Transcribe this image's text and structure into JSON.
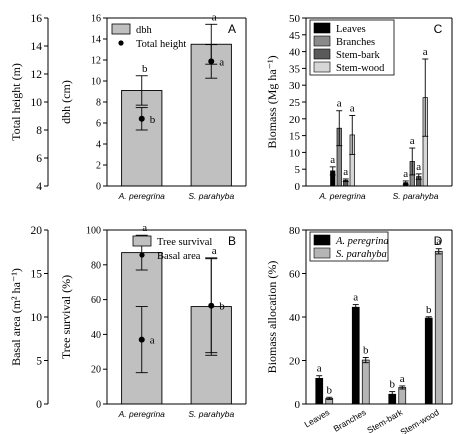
{
  "chart_data": [
    {
      "type": "bar",
      "panel": "A",
      "categories": [
        "A. peregrina",
        "S. parahyba"
      ],
      "legend": [
        "dbh",
        "Total height"
      ],
      "legend_placement": "top-left",
      "y_left": {
        "label": "Total height (m)",
        "ylim": [
          4,
          16
        ],
        "ticks": [
          4,
          6,
          8,
          10,
          12,
          14,
          16
        ]
      },
      "y_right": {
        "label": "dbh (cm)",
        "ylim": [
          0,
          16
        ],
        "ticks": [
          0,
          2,
          4,
          6,
          8,
          10,
          12,
          14,
          16
        ]
      },
      "bars": {
        "name": "dbh",
        "values": [
          9.1,
          13.5
        ],
        "err": [
          1.4,
          1.9
        ],
        "letters": [
          "b",
          "a"
        ]
      },
      "points": {
        "name": "Total height",
        "values": [
          8.8,
          12.9
        ],
        "err": [
          0.8,
          1.2
        ],
        "letters": [
          "b",
          "a"
        ]
      }
    },
    {
      "type": "bar",
      "panel": "B",
      "categories": [
        "A. peregrina",
        "S. parahyba"
      ],
      "legend": [
        "Tree survival",
        "Basal area"
      ],
      "legend_placement": "top-right",
      "y_left": {
        "label": "Basal area (m² ha⁻¹)",
        "ylim": [
          0,
          20
        ],
        "ticks": [
          0,
          5,
          10,
          15,
          20
        ]
      },
      "y_right": {
        "label": "Tree survival (%)",
        "ylim": [
          0,
          100
        ],
        "ticks": [
          0,
          20,
          40,
          60,
          80,
          100
        ]
      },
      "bars": {
        "name": "Tree survival",
        "values": [
          87,
          56
        ],
        "err": [
          10,
          28
        ],
        "letters": [
          "a",
          "a"
        ]
      },
      "points": {
        "name": "Basal area",
        "values": [
          7.4,
          11.3
        ],
        "err": [
          3.8,
          5.4
        ],
        "letters": [
          "a",
          "b"
        ]
      }
    },
    {
      "type": "bar",
      "panel": "C",
      "categories": [
        "A. peregrina",
        "S. parahyba"
      ],
      "legend_placement": "top-left",
      "ylabel": "Biomass (Mg ha⁻¹)",
      "ylim": [
        0,
        50
      ],
      "yticks": [
        0,
        5,
        10,
        15,
        20,
        25,
        30,
        35,
        40,
        45,
        50
      ],
      "series": [
        {
          "name": "Leaves",
          "color": "#000000",
          "values": [
            4.5,
            1.0
          ],
          "err": [
            1.2,
            0.5
          ],
          "letters": [
            "a",
            "a"
          ]
        },
        {
          "name": "Branches",
          "color": "#8a8a8a",
          "values": [
            17.2,
            7.3
          ],
          "err": [
            5.2,
            4.0
          ],
          "letters": [
            "a",
            "a"
          ]
        },
        {
          "name": "Stem-bark",
          "color": "#5a5a5a",
          "values": [
            1.7,
            2.8
          ],
          "err": [
            0.4,
            0.8
          ],
          "letters": [
            "a",
            "a"
          ]
        },
        {
          "name": "Stem-wood",
          "color": "#d6d6d6",
          "values": [
            15.2,
            26.3
          ],
          "err": [
            5.8,
            11.5
          ],
          "letters": [
            "a",
            "a"
          ]
        }
      ]
    },
    {
      "type": "bar",
      "panel": "D",
      "categories": [
        "Leaves",
        "Branches",
        "Stem-bark",
        "Stem-wood"
      ],
      "legend_placement": "top-left",
      "ylabel": "Biomass allocation (%)",
      "ylim": [
        0,
        80
      ],
      "yticks": [
        0,
        20,
        40,
        60,
        80
      ],
      "series": [
        {
          "name": "A. peregrina",
          "color": "#000000",
          "values": [
            11.8,
            44.5,
            4.5,
            39.5
          ],
          "err": [
            1.2,
            1.2,
            1.2,
            0.6
          ],
          "letters": [
            "a",
            "a",
            "b",
            "b"
          ]
        },
        {
          "name": "S. parahyba",
          "color": "#b5b5b5",
          "values": [
            2.6,
            20.2,
            7.6,
            70.2
          ],
          "err": [
            0.5,
            1.2,
            0.7,
            1.2
          ],
          "letters": [
            "b",
            "b",
            "a",
            "a"
          ]
        }
      ]
    }
  ]
}
